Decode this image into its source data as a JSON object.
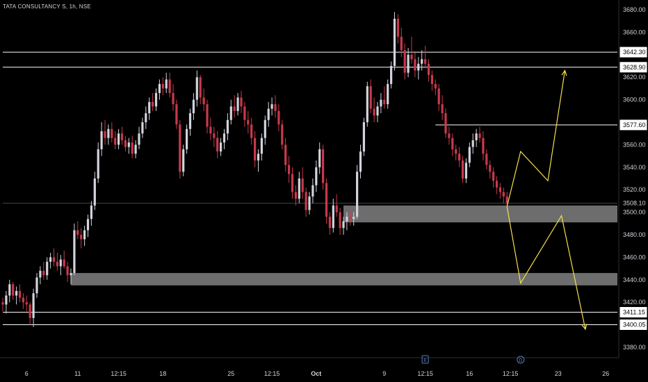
{
  "header": {
    "symbol": "TATA CONSULTANCY S",
    "interval": "1h",
    "exchange": "NSE"
  },
  "colors": {
    "background": "#000000",
    "up_candle": "#d1d4dc",
    "down_candle": "#c8394c",
    "level_line": "#ffffff",
    "zone_fill": "#808080",
    "projection": "#f4e04d",
    "axis_text": "#d1d4dc"
  },
  "chart_data": {
    "type": "candlestick",
    "y_axis": {
      "min": 3370,
      "max": 3690,
      "ticks": [
        3380,
        3400,
        3420,
        3440,
        3460,
        3480,
        3500,
        3520,
        3540,
        3560,
        3580,
        3600,
        3620,
        3640,
        3660,
        3680
      ],
      "tick_labels": [
        "3380.00",
        "3400.00",
        "3420.00",
        "3440.00",
        "3460.00",
        "3480.00",
        "3500.00",
        "3520.00",
        "3540.00",
        "3560.00",
        "3580.00",
        "3600.00",
        "3620.00",
        "3640.00",
        "3660.00",
        "3680.00"
      ]
    },
    "x_axis": {
      "ticks": [
        {
          "label": "6",
          "bar": 7
        },
        {
          "label": "11",
          "bar": 22
        },
        {
          "label": "12:15",
          "bar": 34
        },
        {
          "label": "18",
          "bar": 47
        },
        {
          "label": "25",
          "bar": 67
        },
        {
          "label": "12:15",
          "bar": 79
        },
        {
          "label": "Oct",
          "bar": 92
        },
        {
          "label": "9",
          "bar": 112
        },
        {
          "label": "12:15",
          "bar": 124
        },
        {
          "label": "16",
          "bar": 137
        },
        {
          "label": "12:15",
          "bar": 149
        },
        {
          "label": "23",
          "bar": 163
        },
        {
          "label": "26",
          "bar": 177
        }
      ]
    },
    "price_levels": [
      {
        "price": 3642.3,
        "label": "3642.30",
        "x_start_bar": 0
      },
      {
        "price": 3628.9,
        "label": "3628.90",
        "x_start_bar": 0
      },
      {
        "price": 3577.6,
        "label": "3577.60",
        "x_start_bar": 127
      },
      {
        "price": 3508.1,
        "label": "3508.10",
        "x_start_bar": 0,
        "faint": true
      },
      {
        "price": 3411.15,
        "label": "3411.15",
        "x_start_bar": 0
      },
      {
        "price": 3400.05,
        "label": "3400.05",
        "x_start_bar": 0
      }
    ],
    "zones": [
      {
        "from_bar": 100,
        "top": 3506,
        "bottom": 3491
      },
      {
        "from_bar": 20,
        "top": 3446,
        "bottom": 3435
      }
    ],
    "projection_paths": [
      [
        [
          148,
          3505
        ],
        [
          152,
          3554
        ],
        [
          160,
          3528
        ],
        [
          165,
          3626
        ]
      ],
      [
        [
          148,
          3505
        ],
        [
          152,
          3437
        ],
        [
          164,
          3497
        ],
        [
          171,
          3396
        ]
      ]
    ],
    "event_markers": [
      {
        "letter": "E",
        "bar": 124
      },
      {
        "letter": "D",
        "bar": 152
      }
    ],
    "candles": [
      [
        3420,
        3424,
        3412,
        3418
      ],
      [
        3418,
        3430,
        3410,
        3426
      ],
      [
        3426,
        3440,
        3420,
        3436
      ],
      [
        3436,
        3438,
        3422,
        3426
      ],
      [
        3426,
        3434,
        3418,
        3430
      ],
      [
        3430,
        3436,
        3420,
        3424
      ],
      [
        3424,
        3428,
        3414,
        3420
      ],
      [
        3420,
        3426,
        3412,
        3418
      ],
      [
        3418,
        3420,
        3400,
        3406
      ],
      [
        3406,
        3432,
        3398,
        3428
      ],
      [
        3428,
        3446,
        3424,
        3442
      ],
      [
        3442,
        3452,
        3436,
        3448
      ],
      [
        3448,
        3456,
        3440,
        3444
      ],
      [
        3444,
        3460,
        3440,
        3456
      ],
      [
        3456,
        3464,
        3450,
        3460
      ],
      [
        3460,
        3468,
        3452,
        3456
      ],
      [
        3456,
        3464,
        3448,
        3452
      ],
      [
        3452,
        3462,
        3444,
        3458
      ],
      [
        3458,
        3466,
        3450,
        3452
      ],
      [
        3452,
        3456,
        3438,
        3444
      ],
      [
        3444,
        3450,
        3436,
        3446
      ],
      [
        3446,
        3490,
        3444,
        3484
      ],
      [
        3484,
        3492,
        3476,
        3480
      ],
      [
        3480,
        3486,
        3468,
        3476
      ],
      [
        3476,
        3488,
        3470,
        3484
      ],
      [
        3484,
        3498,
        3478,
        3494
      ],
      [
        3494,
        3510,
        3488,
        3506
      ],
      [
        3506,
        3536,
        3502,
        3530
      ],
      [
        3530,
        3562,
        3526,
        3556
      ],
      [
        3556,
        3580,
        3550,
        3572
      ],
      [
        3572,
        3582,
        3560,
        3566
      ],
      [
        3566,
        3578,
        3560,
        3574
      ],
      [
        3574,
        3580,
        3562,
        3566
      ],
      [
        3566,
        3572,
        3556,
        3560
      ],
      [
        3560,
        3574,
        3556,
        3570
      ],
      [
        3570,
        3576,
        3560,
        3564
      ],
      [
        3564,
        3568,
        3554,
        3558
      ],
      [
        3558,
        3566,
        3552,
        3562
      ],
      [
        3562,
        3568,
        3548,
        3552
      ],
      [
        3552,
        3564,
        3548,
        3560
      ],
      [
        3560,
        3576,
        3556,
        3570
      ],
      [
        3570,
        3584,
        3566,
        3580
      ],
      [
        3580,
        3594,
        3574,
        3588
      ],
      [
        3588,
        3602,
        3582,
        3598
      ],
      [
        3598,
        3606,
        3590,
        3594
      ],
      [
        3594,
        3610,
        3590,
        3606
      ],
      [
        3606,
        3618,
        3600,
        3614
      ],
      [
        3614,
        3620,
        3604,
        3610
      ],
      [
        3610,
        3624,
        3606,
        3618
      ],
      [
        3618,
        3624,
        3602,
        3606
      ],
      [
        3606,
        3614,
        3590,
        3596
      ],
      [
        3596,
        3600,
        3574,
        3578
      ],
      [
        3578,
        3582,
        3530,
        3536
      ],
      [
        3536,
        3560,
        3532,
        3556
      ],
      [
        3556,
        3578,
        3552,
        3574
      ],
      [
        3574,
        3592,
        3568,
        3588
      ],
      [
        3588,
        3606,
        3582,
        3600
      ],
      [
        3600,
        3626,
        3594,
        3620
      ],
      [
        3620,
        3622,
        3596,
        3602
      ],
      [
        3602,
        3610,
        3590,
        3596
      ],
      [
        3596,
        3600,
        3570,
        3576
      ],
      [
        3576,
        3584,
        3564,
        3570
      ],
      [
        3570,
        3576,
        3558,
        3566
      ],
      [
        3566,
        3572,
        3548,
        3554
      ],
      [
        3554,
        3566,
        3550,
        3562
      ],
      [
        3562,
        3574,
        3556,
        3570
      ],
      [
        3570,
        3588,
        3564,
        3582
      ],
      [
        3582,
        3600,
        3578,
        3594
      ],
      [
        3594,
        3604,
        3584,
        3590
      ],
      [
        3590,
        3606,
        3586,
        3602
      ],
      [
        3602,
        3608,
        3588,
        3594
      ],
      [
        3594,
        3598,
        3576,
        3582
      ],
      [
        3582,
        3590,
        3570,
        3578
      ],
      [
        3578,
        3584,
        3560,
        3566
      ],
      [
        3566,
        3572,
        3540,
        3546
      ],
      [
        3546,
        3556,
        3536,
        3552
      ],
      [
        3552,
        3570,
        3546,
        3566
      ],
      [
        3566,
        3586,
        3560,
        3582
      ],
      [
        3582,
        3598,
        3576,
        3592
      ],
      [
        3592,
        3602,
        3586,
        3596
      ],
      [
        3596,
        3604,
        3584,
        3590
      ],
      [
        3590,
        3596,
        3572,
        3578
      ],
      [
        3578,
        3582,
        3556,
        3560
      ],
      [
        3560,
        3566,
        3536,
        3542
      ],
      [
        3542,
        3550,
        3526,
        3534
      ],
      [
        3534,
        3540,
        3512,
        3518
      ],
      [
        3518,
        3524,
        3506,
        3512
      ],
      [
        3512,
        3536,
        3508,
        3530
      ],
      [
        3530,
        3540,
        3512,
        3518
      ],
      [
        3518,
        3522,
        3496,
        3502
      ],
      [
        3502,
        3518,
        3498,
        3514
      ],
      [
        3514,
        3530,
        3508,
        3524
      ],
      [
        3524,
        3546,
        3518,
        3540
      ],
      [
        3540,
        3562,
        3534,
        3556
      ],
      [
        3556,
        3560,
        3520,
        3526
      ],
      [
        3526,
        3530,
        3490,
        3496
      ],
      [
        3496,
        3500,
        3480,
        3486
      ],
      [
        3486,
        3512,
        3482,
        3506
      ],
      [
        3506,
        3516,
        3496,
        3500
      ],
      [
        3500,
        3504,
        3480,
        3486
      ],
      [
        3486,
        3496,
        3480,
        3492
      ],
      [
        3492,
        3500,
        3484,
        3496
      ],
      [
        3496,
        3502,
        3488,
        3494
      ],
      [
        3494,
        3500,
        3488,
        3496
      ],
      [
        3496,
        3542,
        3494,
        3536
      ],
      [
        3536,
        3560,
        3530,
        3554
      ],
      [
        3554,
        3584,
        3550,
        3580
      ],
      [
        3580,
        3616,
        3576,
        3612
      ],
      [
        3612,
        3618,
        3588,
        3592
      ],
      [
        3592,
        3602,
        3580,
        3586
      ],
      [
        3586,
        3598,
        3580,
        3594
      ],
      [
        3594,
        3606,
        3588,
        3600
      ],
      [
        3600,
        3612,
        3592,
        3596
      ],
      [
        3596,
        3618,
        3592,
        3614
      ],
      [
        3614,
        3634,
        3610,
        3630
      ],
      [
        3630,
        3678,
        3626,
        3672
      ],
      [
        3672,
        3676,
        3650,
        3656
      ],
      [
        3656,
        3664,
        3638,
        3644
      ],
      [
        3644,
        3650,
        3618,
        3624
      ],
      [
        3624,
        3646,
        3620,
        3640
      ],
      [
        3640,
        3656,
        3632,
        3636
      ],
      [
        3636,
        3642,
        3620,
        3626
      ],
      [
        3626,
        3638,
        3618,
        3632
      ],
      [
        3632,
        3644,
        3626,
        3636
      ],
      [
        3636,
        3648,
        3628,
        3632
      ],
      [
        3632,
        3636,
        3616,
        3622
      ],
      [
        3622,
        3626,
        3608,
        3614
      ],
      [
        3614,
        3618,
        3604,
        3610
      ],
      [
        3610,
        3614,
        3590,
        3596
      ],
      [
        3596,
        3604,
        3582,
        3588
      ],
      [
        3588,
        3592,
        3566,
        3570
      ],
      [
        3570,
        3576,
        3560,
        3566
      ],
      [
        3566,
        3570,
        3550,
        3556
      ],
      [
        3556,
        3560,
        3546,
        3552
      ],
      [
        3552,
        3558,
        3540,
        3546
      ],
      [
        3546,
        3550,
        3526,
        3530
      ],
      [
        3530,
        3548,
        3526,
        3544
      ],
      [
        3544,
        3562,
        3540,
        3558
      ],
      [
        3558,
        3570,
        3552,
        3564
      ],
      [
        3564,
        3574,
        3558,
        3570
      ],
      [
        3570,
        3576,
        3562,
        3566
      ],
      [
        3566,
        3572,
        3546,
        3552
      ],
      [
        3552,
        3556,
        3538,
        3542
      ],
      [
        3542,
        3546,
        3530,
        3536
      ],
      [
        3536,
        3540,
        3522,
        3528
      ],
      [
        3528,
        3532,
        3516,
        3522
      ],
      [
        3522,
        3526,
        3512,
        3518
      ],
      [
        3518,
        3522,
        3508,
        3514
      ],
      [
        3514,
        3518,
        3504,
        3508
      ]
    ]
  }
}
